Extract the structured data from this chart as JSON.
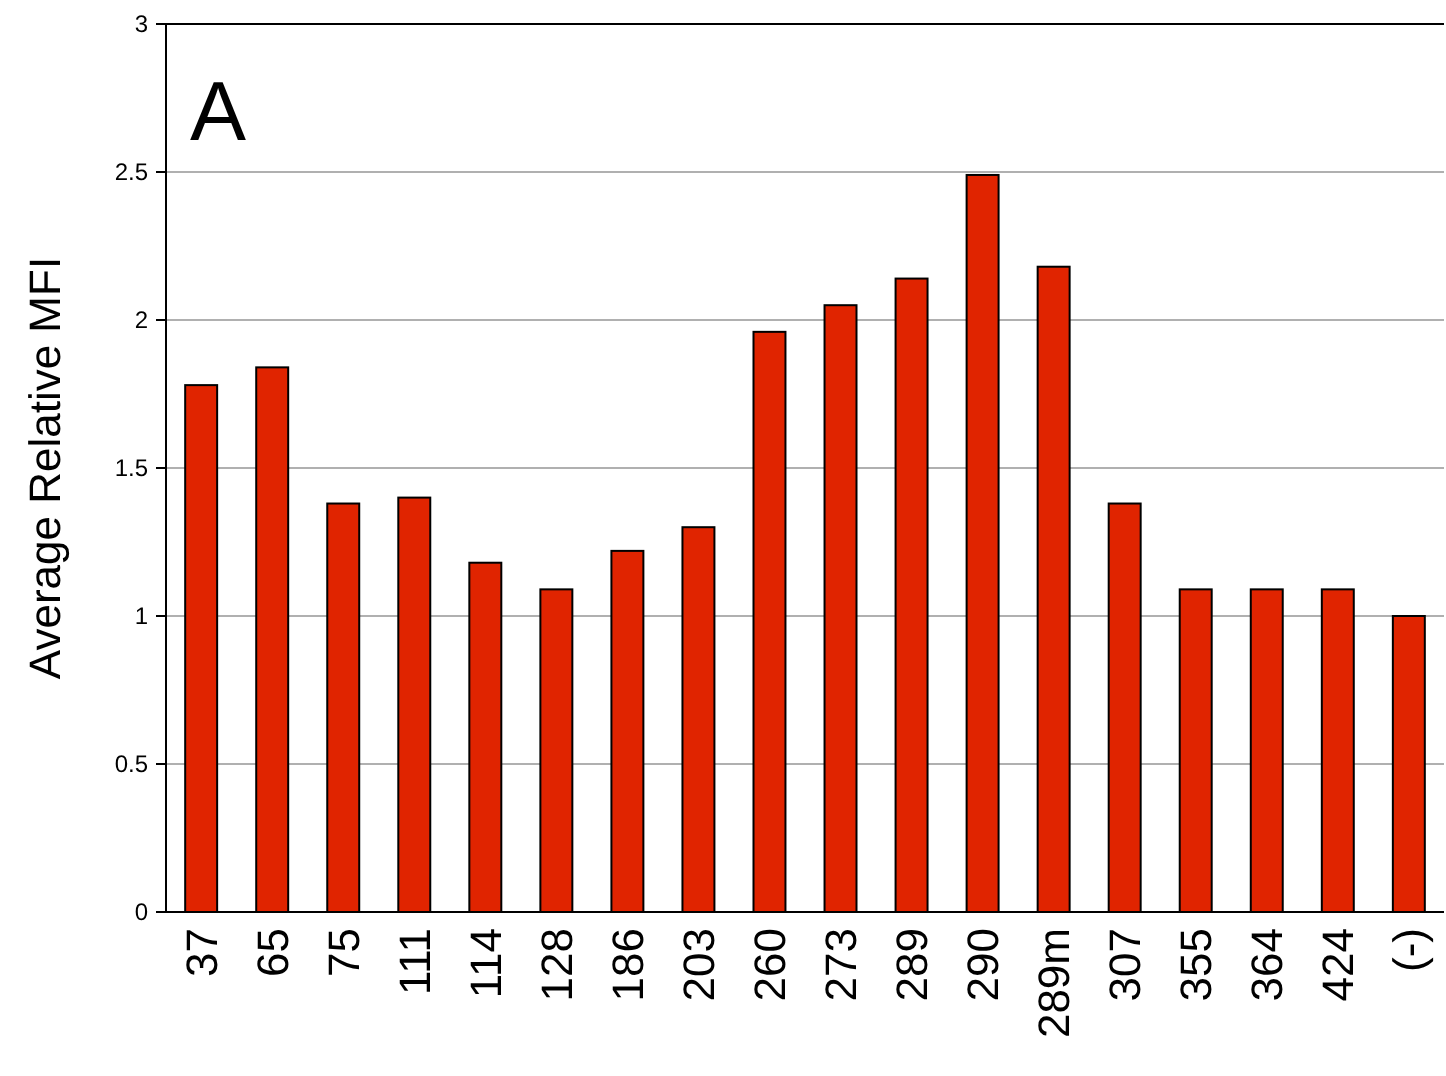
{
  "chart_data": {
    "type": "bar",
    "ylabel": "Average Relative MFI",
    "annotations": [
      "A"
    ],
    "categories": [
      "37",
      "65",
      "75",
      "111",
      "114",
      "128",
      "186",
      "203",
      "260",
      "273",
      "289",
      "290",
      "289m",
      "307",
      "355",
      "364",
      "424",
      "(-)"
    ],
    "values": [
      1.78,
      1.84,
      1.38,
      1.4,
      1.18,
      1.09,
      1.22,
      1.3,
      1.96,
      2.05,
      2.14,
      2.49,
      2.18,
      1.38,
      1.09,
      1.09,
      1.09,
      1.0
    ],
    "color": "#e02400",
    "ylim": [
      0,
      3
    ],
    "yticks": [
      0,
      0.5,
      1,
      1.5,
      2,
      2.5,
      3
    ],
    "grid": "y"
  }
}
